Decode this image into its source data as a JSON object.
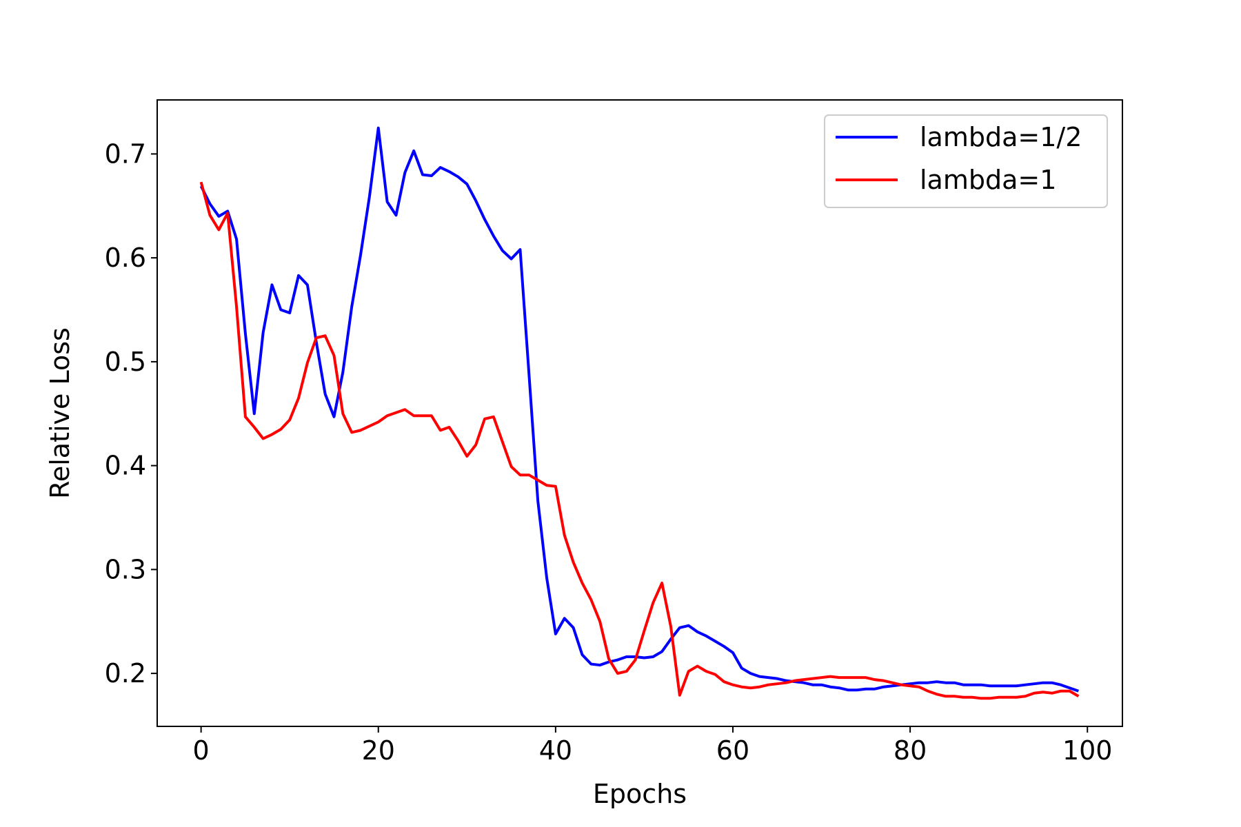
{
  "chart_data": {
    "type": "line",
    "title": "",
    "xlabel": "Epochs",
    "ylabel": "Relative Loss",
    "xlim": [
      -4.95,
      103.95
    ],
    "ylim": [
      0.149,
      0.752
    ],
    "xticks": [
      0,
      20,
      40,
      60,
      80,
      100
    ],
    "yticks": [
      0.2,
      0.3,
      0.4,
      0.5,
      0.6,
      0.7
    ],
    "xtick_labels": [
      "0",
      "20",
      "40",
      "60",
      "80",
      "100"
    ],
    "ytick_labels": [
      "0.2",
      "0.3",
      "0.4",
      "0.5",
      "0.6",
      "0.7"
    ],
    "grid": false,
    "legend_position": "top-right",
    "series": [
      {
        "name": "lambda=1/2",
        "color": "#0000ff",
        "x": [
          0,
          1,
          2,
          3,
          4,
          5,
          6,
          7,
          8,
          9,
          10,
          11,
          12,
          13,
          14,
          15,
          16,
          17,
          18,
          19,
          20,
          21,
          22,
          23,
          24,
          25,
          26,
          27,
          28,
          29,
          30,
          31,
          32,
          33,
          34,
          35,
          36,
          37,
          38,
          39,
          40,
          41,
          42,
          43,
          44,
          45,
          46,
          47,
          48,
          49,
          50,
          51,
          52,
          53,
          54,
          55,
          56,
          57,
          58,
          59,
          60,
          61,
          62,
          63,
          64,
          65,
          66,
          67,
          68,
          69,
          70,
          71,
          72,
          73,
          74,
          75,
          76,
          77,
          78,
          79,
          80,
          81,
          82,
          83,
          84,
          85,
          86,
          87,
          88,
          89,
          90,
          91,
          92,
          93,
          94,
          95,
          96,
          97,
          98,
          99
        ],
        "values": [
          0.669,
          0.652,
          0.64,
          0.645,
          0.618,
          0.527,
          0.45,
          0.528,
          0.574,
          0.55,
          0.547,
          0.583,
          0.574,
          0.519,
          0.469,
          0.447,
          0.49,
          0.553,
          0.603,
          0.659,
          0.725,
          0.654,
          0.641,
          0.682,
          0.703,
          0.68,
          0.679,
          0.687,
          0.683,
          0.678,
          0.671,
          0.655,
          0.637,
          0.621,
          0.607,
          0.599,
          0.608,
          0.488,
          0.366,
          0.292,
          0.238,
          0.253,
          0.244,
          0.218,
          0.209,
          0.208,
          0.211,
          0.213,
          0.216,
          0.216,
          0.215,
          0.216,
          0.221,
          0.233,
          0.244,
          0.246,
          0.24,
          0.236,
          0.231,
          0.226,
          0.22,
          0.205,
          0.2,
          0.197,
          0.196,
          0.195,
          0.193,
          0.192,
          0.191,
          0.189,
          0.189,
          0.187,
          0.186,
          0.184,
          0.184,
          0.185,
          0.185,
          0.187,
          0.188,
          0.189,
          0.19,
          0.191,
          0.191,
          0.192,
          0.191,
          0.191,
          0.189,
          0.189,
          0.189,
          0.188,
          0.188,
          0.188,
          0.188,
          0.189,
          0.19,
          0.191,
          0.191,
          0.189,
          0.186,
          0.183
        ]
      },
      {
        "name": "lambda=1",
        "color": "#ff0000",
        "x": [
          0,
          1,
          2,
          3,
          4,
          5,
          6,
          7,
          8,
          9,
          10,
          11,
          12,
          13,
          14,
          15,
          16,
          17,
          18,
          19,
          20,
          21,
          22,
          23,
          24,
          25,
          26,
          27,
          28,
          29,
          30,
          31,
          32,
          33,
          34,
          35,
          36,
          37,
          38,
          39,
          40,
          41,
          42,
          43,
          44,
          45,
          46,
          47,
          48,
          49,
          50,
          51,
          52,
          53,
          54,
          55,
          56,
          57,
          58,
          59,
          60,
          61,
          62,
          63,
          64,
          65,
          66,
          67,
          68,
          69,
          70,
          71,
          72,
          73,
          74,
          75,
          76,
          77,
          78,
          79,
          80,
          81,
          82,
          83,
          84,
          85,
          86,
          87,
          88,
          89,
          90,
          91,
          92,
          93,
          94,
          95,
          96,
          97,
          98,
          99
        ],
        "values": [
          0.673,
          0.641,
          0.627,
          0.643,
          0.553,
          0.447,
          0.437,
          0.426,
          0.43,
          0.435,
          0.444,
          0.465,
          0.499,
          0.523,
          0.525,
          0.506,
          0.45,
          0.432,
          0.434,
          0.438,
          0.442,
          0.448,
          0.451,
          0.454,
          0.448,
          0.448,
          0.448,
          0.434,
          0.437,
          0.424,
          0.409,
          0.42,
          0.445,
          0.447,
          0.423,
          0.399,
          0.391,
          0.391,
          0.386,
          0.381,
          0.38,
          0.333,
          0.307,
          0.287,
          0.271,
          0.25,
          0.214,
          0.2,
          0.202,
          0.213,
          0.241,
          0.268,
          0.287,
          0.245,
          0.179,
          0.202,
          0.207,
          0.202,
          0.199,
          0.192,
          0.189,
          0.187,
          0.186,
          0.187,
          0.189,
          0.19,
          0.191,
          0.193,
          0.194,
          0.195,
          0.196,
          0.197,
          0.196,
          0.196,
          0.196,
          0.196,
          0.194,
          0.193,
          0.191,
          0.189,
          0.188,
          0.187,
          0.183,
          0.18,
          0.178,
          0.178,
          0.177,
          0.177,
          0.176,
          0.176,
          0.177,
          0.177,
          0.177,
          0.178,
          0.181,
          0.182,
          0.181,
          0.183,
          0.183,
          0.178
        ]
      }
    ]
  }
}
